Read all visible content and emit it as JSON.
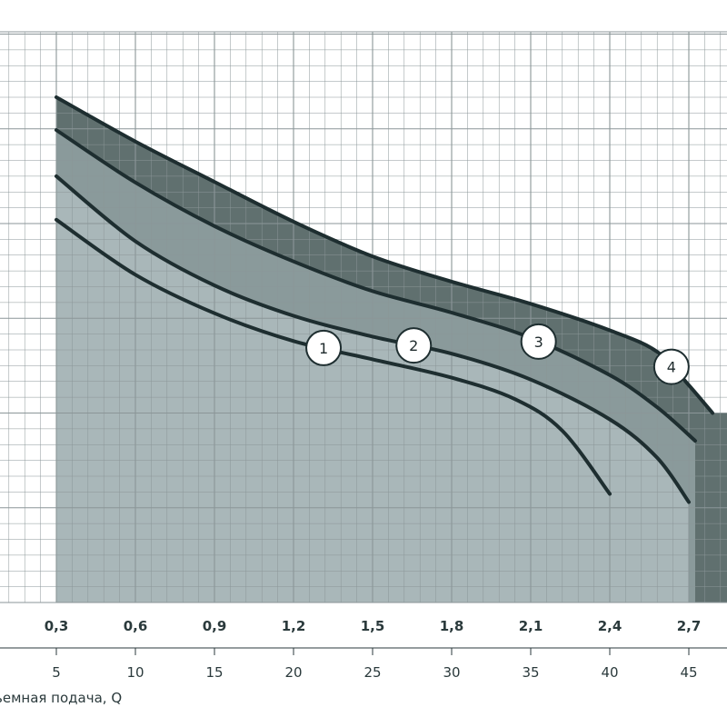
{
  "chart_data": {
    "type": "area",
    "xlabel": "ьемная подача, Q",
    "x_top_ticks": [
      "0,3",
      "0,6",
      "0,9",
      "1,2",
      "1,5",
      "1,8",
      "2,1",
      "2,4",
      "2,7"
    ],
    "x_bottom_ticks": [
      "5",
      "10",
      "15",
      "20",
      "25",
      "30",
      "35",
      "40",
      "45"
    ],
    "grid": true,
    "series": [
      {
        "name": "1",
        "points": [
          [
            5,
            6.06
          ],
          [
            10,
            5.19
          ],
          [
            15,
            4.58
          ],
          [
            20,
            4.14
          ],
          [
            25,
            3.85
          ],
          [
            30,
            3.56
          ],
          [
            34,
            3.22
          ],
          [
            37,
            2.72
          ],
          [
            40,
            1.72
          ]
        ]
      },
      {
        "name": "2",
        "points": [
          [
            5,
            6.75
          ],
          [
            10,
            5.72
          ],
          [
            15,
            5.02
          ],
          [
            20,
            4.54
          ],
          [
            25,
            4.21
          ],
          [
            30,
            3.94
          ],
          [
            35,
            3.53
          ],
          [
            40,
            2.9
          ],
          [
            43,
            2.29
          ],
          [
            45,
            1.59
          ]
        ]
      },
      {
        "name": "3",
        "points": [
          [
            5,
            7.48
          ],
          [
            10,
            6.65
          ],
          [
            15,
            5.96
          ],
          [
            20,
            5.4
          ],
          [
            25,
            4.93
          ],
          [
            30,
            4.59
          ],
          [
            35,
            4.19
          ],
          [
            40,
            3.6
          ],
          [
            43,
            3.09
          ],
          [
            45.4,
            2.56
          ]
        ]
      },
      {
        "name": "4",
        "points": [
          [
            5,
            8.0
          ],
          [
            10,
            7.3
          ],
          [
            15,
            6.66
          ],
          [
            20,
            6.03
          ],
          [
            25,
            5.48
          ],
          [
            30,
            5.08
          ],
          [
            35,
            4.73
          ],
          [
            40,
            4.31
          ],
          [
            43,
            3.97
          ],
          [
            45,
            3.44
          ],
          [
            46.5,
            3.0
          ]
        ]
      }
    ],
    "colors": {
      "grid": "#8b9698",
      "fill_light": "#a9b7b9",
      "fill_dark": "#60706f",
      "fill_mid": "#8a9a9b",
      "stroke": "#1e2e30",
      "text": "#2b3a3c"
    }
  }
}
